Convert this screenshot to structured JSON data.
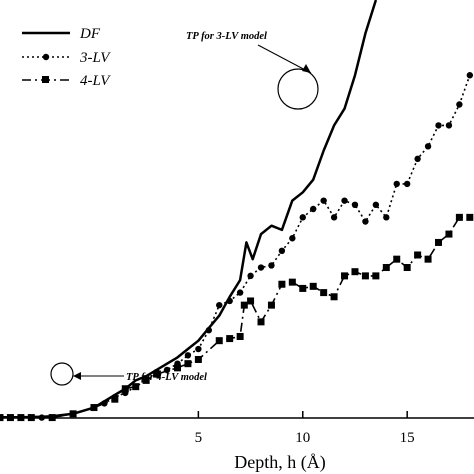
{
  "chart_data": {
    "type": "line",
    "xlabel": "Depth, h (Å)",
    "ylabel": "",
    "xlim": [
      -4.5,
      18.2
    ],
    "ylim": [
      0,
      100
    ],
    "xticks": [
      5,
      10,
      15
    ],
    "grid": false,
    "legend_position": "top-left",
    "series": [
      {
        "name": "DF",
        "style": "solid",
        "marker": "none",
        "points": [
          [
            -4.5,
            0.2
          ],
          [
            -3.5,
            0.2
          ],
          [
            -2.5,
            0.3
          ],
          [
            -2,
            0.4
          ],
          [
            -1,
            1
          ],
          [
            0,
            2.5
          ],
          [
            0.5,
            4
          ],
          [
            1,
            5.5
          ],
          [
            1.5,
            7
          ],
          [
            2,
            9
          ],
          [
            2.5,
            10
          ],
          [
            3,
            11.5
          ],
          [
            3.5,
            13
          ],
          [
            4,
            14.5
          ],
          [
            4.5,
            16.5
          ],
          [
            5,
            18.5
          ],
          [
            5.5,
            21.5
          ],
          [
            6,
            24.5
          ],
          [
            6.5,
            29
          ],
          [
            7,
            33
          ],
          [
            7.3,
            42
          ],
          [
            7.6,
            38
          ],
          [
            8,
            44
          ],
          [
            8.5,
            46
          ],
          [
            9,
            45
          ],
          [
            9.5,
            52
          ],
          [
            10,
            54
          ],
          [
            10.5,
            57
          ],
          [
            11,
            64
          ],
          [
            11.5,
            70
          ],
          [
            12,
            74
          ],
          [
            12.5,
            82
          ],
          [
            13,
            92
          ],
          [
            13.5,
            100
          ]
        ]
      },
      {
        "name": "3-LV",
        "style": "dotted",
        "marker": "circle",
        "points": [
          [
            -4.5,
            0.1
          ],
          [
            -4,
            0.1
          ],
          [
            -3.5,
            0.1
          ],
          [
            -3,
            0.1
          ],
          [
            -2.5,
            0.1
          ],
          [
            -2,
            0.1
          ],
          [
            -1,
            1
          ],
          [
            0,
            2.5
          ],
          [
            0.5,
            3.5
          ],
          [
            1,
            5
          ],
          [
            1.5,
            6
          ],
          [
            2,
            7.5
          ],
          [
            2.5,
            9
          ],
          [
            3,
            11
          ],
          [
            3.5,
            11.5
          ],
          [
            4,
            13
          ],
          [
            4.5,
            15
          ],
          [
            5,
            16.5
          ],
          [
            5.5,
            21
          ],
          [
            6,
            27
          ],
          [
            6.5,
            28
          ],
          [
            7,
            30
          ],
          [
            7.5,
            34
          ],
          [
            8,
            36
          ],
          [
            8.5,
            36.5
          ],
          [
            9,
            40
          ],
          [
            9.5,
            43
          ],
          [
            10,
            48
          ],
          [
            10.5,
            50
          ],
          [
            11,
            52
          ],
          [
            11.5,
            48
          ],
          [
            12,
            52
          ],
          [
            12.5,
            51
          ],
          [
            13,
            47
          ],
          [
            13.5,
            51
          ],
          [
            14,
            48
          ],
          [
            14.5,
            56
          ],
          [
            15,
            56
          ],
          [
            15.5,
            62
          ],
          [
            16,
            65
          ],
          [
            16.5,
            70
          ],
          [
            17,
            70
          ],
          [
            17.5,
            75
          ],
          [
            18,
            82
          ]
        ]
      },
      {
        "name": "4-LV",
        "style": "dashdot",
        "marker": "square",
        "points": [
          [
            -4.5,
            0.1
          ],
          [
            -4,
            0.1
          ],
          [
            -3.5,
            0.1
          ],
          [
            -3,
            0.1
          ],
          [
            -2,
            0.1
          ],
          [
            -1,
            1
          ],
          [
            0,
            2.5
          ],
          [
            1,
            4.5
          ],
          [
            1.5,
            7
          ],
          [
            2,
            7.5
          ],
          [
            2.5,
            9
          ],
          [
            3,
            10.5
          ],
          [
            4,
            12
          ],
          [
            4.5,
            13
          ],
          [
            5,
            14
          ],
          [
            6,
            18.5
          ],
          [
            6.5,
            19
          ],
          [
            7,
            19.5
          ],
          [
            7.2,
            27
          ],
          [
            7.5,
            28
          ],
          [
            8,
            23
          ],
          [
            8.5,
            27
          ],
          [
            9,
            32
          ],
          [
            9.5,
            32.5
          ],
          [
            10,
            31
          ],
          [
            10.5,
            31.5
          ],
          [
            11,
            30
          ],
          [
            11.5,
            29
          ],
          [
            12,
            34
          ],
          [
            12.5,
            35
          ],
          [
            13,
            34
          ],
          [
            13.5,
            34
          ],
          [
            14,
            36
          ],
          [
            14.5,
            38
          ],
          [
            15,
            36
          ],
          [
            15.5,
            39
          ],
          [
            16,
            38
          ],
          [
            16.5,
            42
          ],
          [
            17,
            44
          ],
          [
            17.5,
            48
          ],
          [
            18,
            48
          ]
        ]
      }
    ],
    "annotations": [
      {
        "text": "TP for 3-LV model",
        "x": 11,
        "y": 52
      },
      {
        "text": "TP for 4-LV model",
        "x": 2.5,
        "y": 9
      }
    ]
  }
}
